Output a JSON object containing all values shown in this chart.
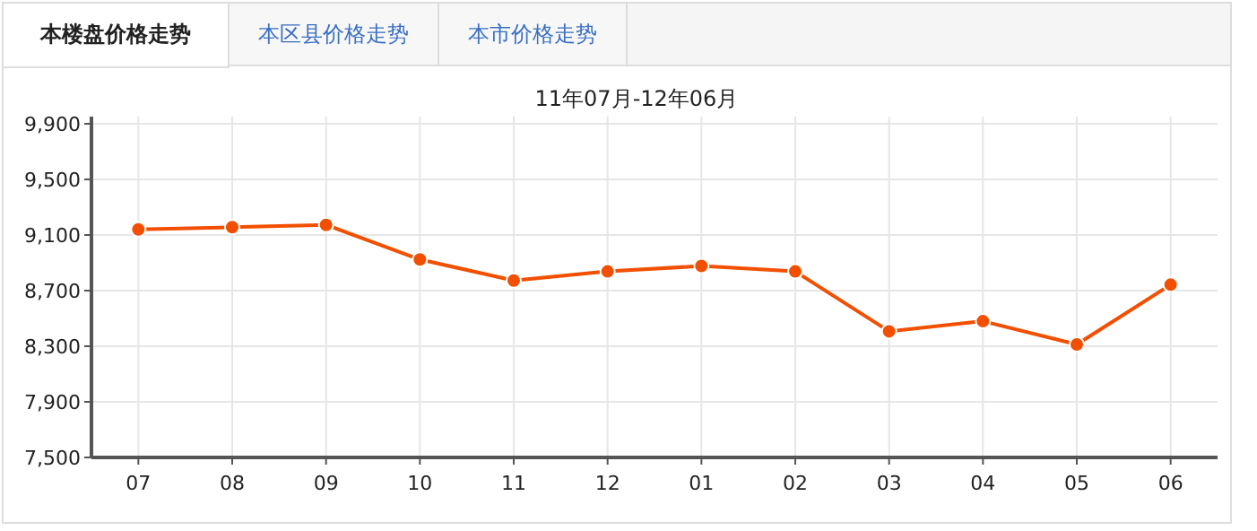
{
  "chart_data": {
    "type": "line",
    "title": "11年07月-12年06月",
    "annotations": [
      "本楼盘价格走势",
      "本区县价格走势",
      "本市价格走势"
    ],
    "categories": [
      "07",
      "08",
      "09",
      "10",
      "11",
      "12",
      "01",
      "02",
      "03",
      "04",
      "05",
      "06"
    ],
    "series": [
      {
        "color": "#f24f00",
        "values": [
          9140,
          9156,
          9173,
          8924,
          8773,
          8838,
          8877,
          8838,
          8407,
          8480,
          8313,
          8743
        ]
      }
    ],
    "ylim": [
      7500,
      9900
    ],
    "yticks": [
      {
        "value": 7500,
        "label": "7,500"
      },
      {
        "value": 7900,
        "label": "7,900"
      },
      {
        "value": 8300,
        "label": "8,300"
      },
      {
        "value": 8700,
        "label": "8,700"
      },
      {
        "value": 9100,
        "label": "9,100"
      },
      {
        "value": 9500,
        "label": "9,500"
      },
      {
        "value": 9900,
        "label": "9,900"
      }
    ],
    "grid": true,
    "marker": "circle",
    "line_style": "solid"
  }
}
